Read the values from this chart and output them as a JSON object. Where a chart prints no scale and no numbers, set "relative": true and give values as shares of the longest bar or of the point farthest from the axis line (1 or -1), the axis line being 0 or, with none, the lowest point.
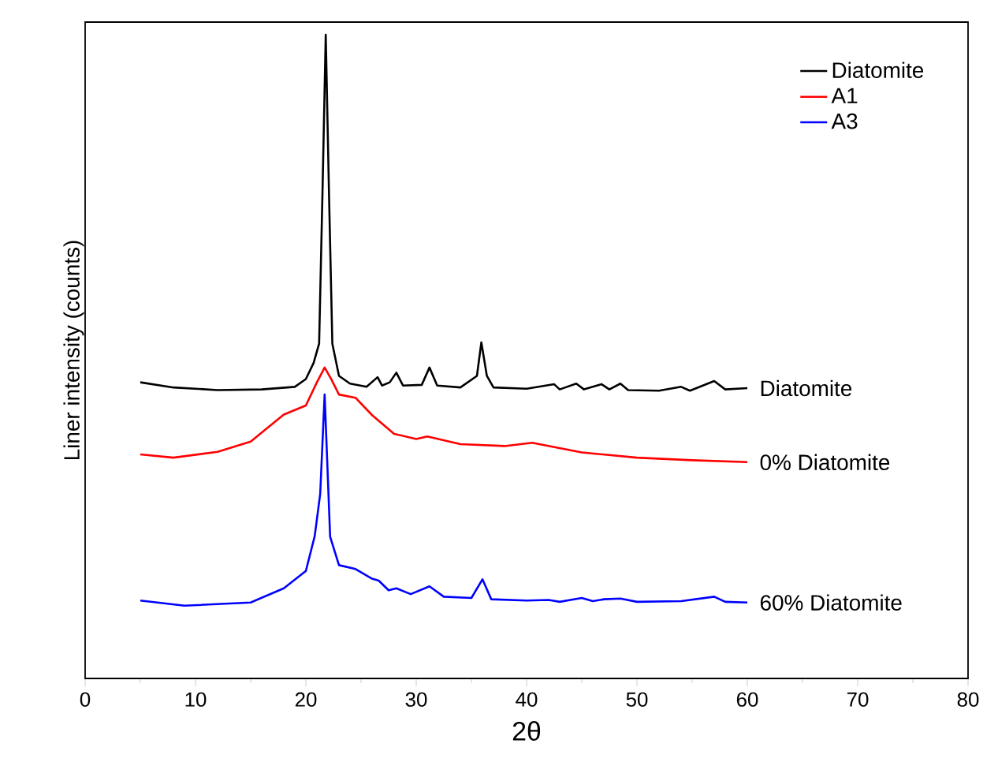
{
  "chart_data": {
    "type": "line",
    "relative": true,
    "xlabel": "2θ",
    "ylabel": "Liner intensity (counts)",
    "xlim": [
      0,
      80
    ],
    "xticks": [
      0,
      10,
      20,
      30,
      40,
      50,
      60,
      70,
      80
    ],
    "legend": "top right",
    "grid": false,
    "marker": "none",
    "line_style": "solid",
    "tick_labels": "x",
    "series": [
      {
        "name": "Diatomite",
        "color": "#000000",
        "x": [
          5,
          8,
          12,
          16,
          19,
          20,
          20.7,
          21.2,
          21.5,
          21.8,
          22.1,
          22.4,
          23,
          24,
          25.5,
          26.5,
          26.9,
          27.6,
          28.2,
          28.8,
          30.5,
          31.2,
          31.9,
          34,
          35.5,
          35.9,
          36.4,
          37,
          40,
          42.5,
          43,
          44.5,
          45.2,
          46.8,
          47.5,
          48.5,
          49.2,
          52,
          54,
          54.8,
          57,
          58,
          60
        ],
        "values": [
          0.46,
          0.452,
          0.448,
          0.449,
          0.453,
          0.465,
          0.49,
          0.52,
          0.75,
          1.0,
          0.75,
          0.52,
          0.47,
          0.458,
          0.453,
          0.468,
          0.455,
          0.46,
          0.475,
          0.455,
          0.456,
          0.483,
          0.455,
          0.452,
          0.47,
          0.522,
          0.47,
          0.452,
          0.45,
          0.457,
          0.449,
          0.458,
          0.449,
          0.457,
          0.449,
          0.458,
          0.448,
          0.447,
          0.453,
          0.447,
          0.462,
          0.449,
          0.451
        ]
      },
      {
        "name": "A1",
        "color": "#ff0000",
        "x": [
          5,
          8,
          12,
          15,
          18,
          20,
          21,
          21.7,
          22.3,
          23,
          24.5,
          26,
          28,
          30,
          31,
          34,
          38,
          40.5,
          45,
          50,
          55,
          60
        ],
        "values": [
          0.348,
          0.343,
          0.352,
          0.368,
          0.41,
          0.424,
          0.46,
          0.483,
          0.465,
          0.441,
          0.436,
          0.409,
          0.38,
          0.372,
          0.376,
          0.364,
          0.361,
          0.366,
          0.351,
          0.343,
          0.339,
          0.336
        ]
      },
      {
        "name": "A3",
        "color": "#0000ff",
        "x": [
          5,
          9,
          15,
          18,
          20,
          20.8,
          21.3,
          21.7,
          22.2,
          23,
          24.5,
          26,
          26.6,
          27.5,
          28.2,
          29.5,
          31.2,
          32.5,
          35,
          36,
          36.8,
          40,
          42,
          43,
          45,
          46,
          47,
          48.5,
          50,
          54,
          57,
          58,
          60
        ],
        "values": [
          0.121,
          0.113,
          0.118,
          0.14,
          0.167,
          0.221,
          0.287,
          0.441,
          0.22,
          0.176,
          0.17,
          0.155,
          0.152,
          0.137,
          0.14,
          0.131,
          0.143,
          0.127,
          0.125,
          0.154,
          0.123,
          0.121,
          0.122,
          0.119,
          0.125,
          0.12,
          0.123,
          0.124,
          0.119,
          0.12,
          0.127,
          0.119,
          0.118
        ]
      }
    ],
    "annotations": [
      "Diatomite",
      "0% Diatomite",
      "60% Diatomite"
    ]
  }
}
